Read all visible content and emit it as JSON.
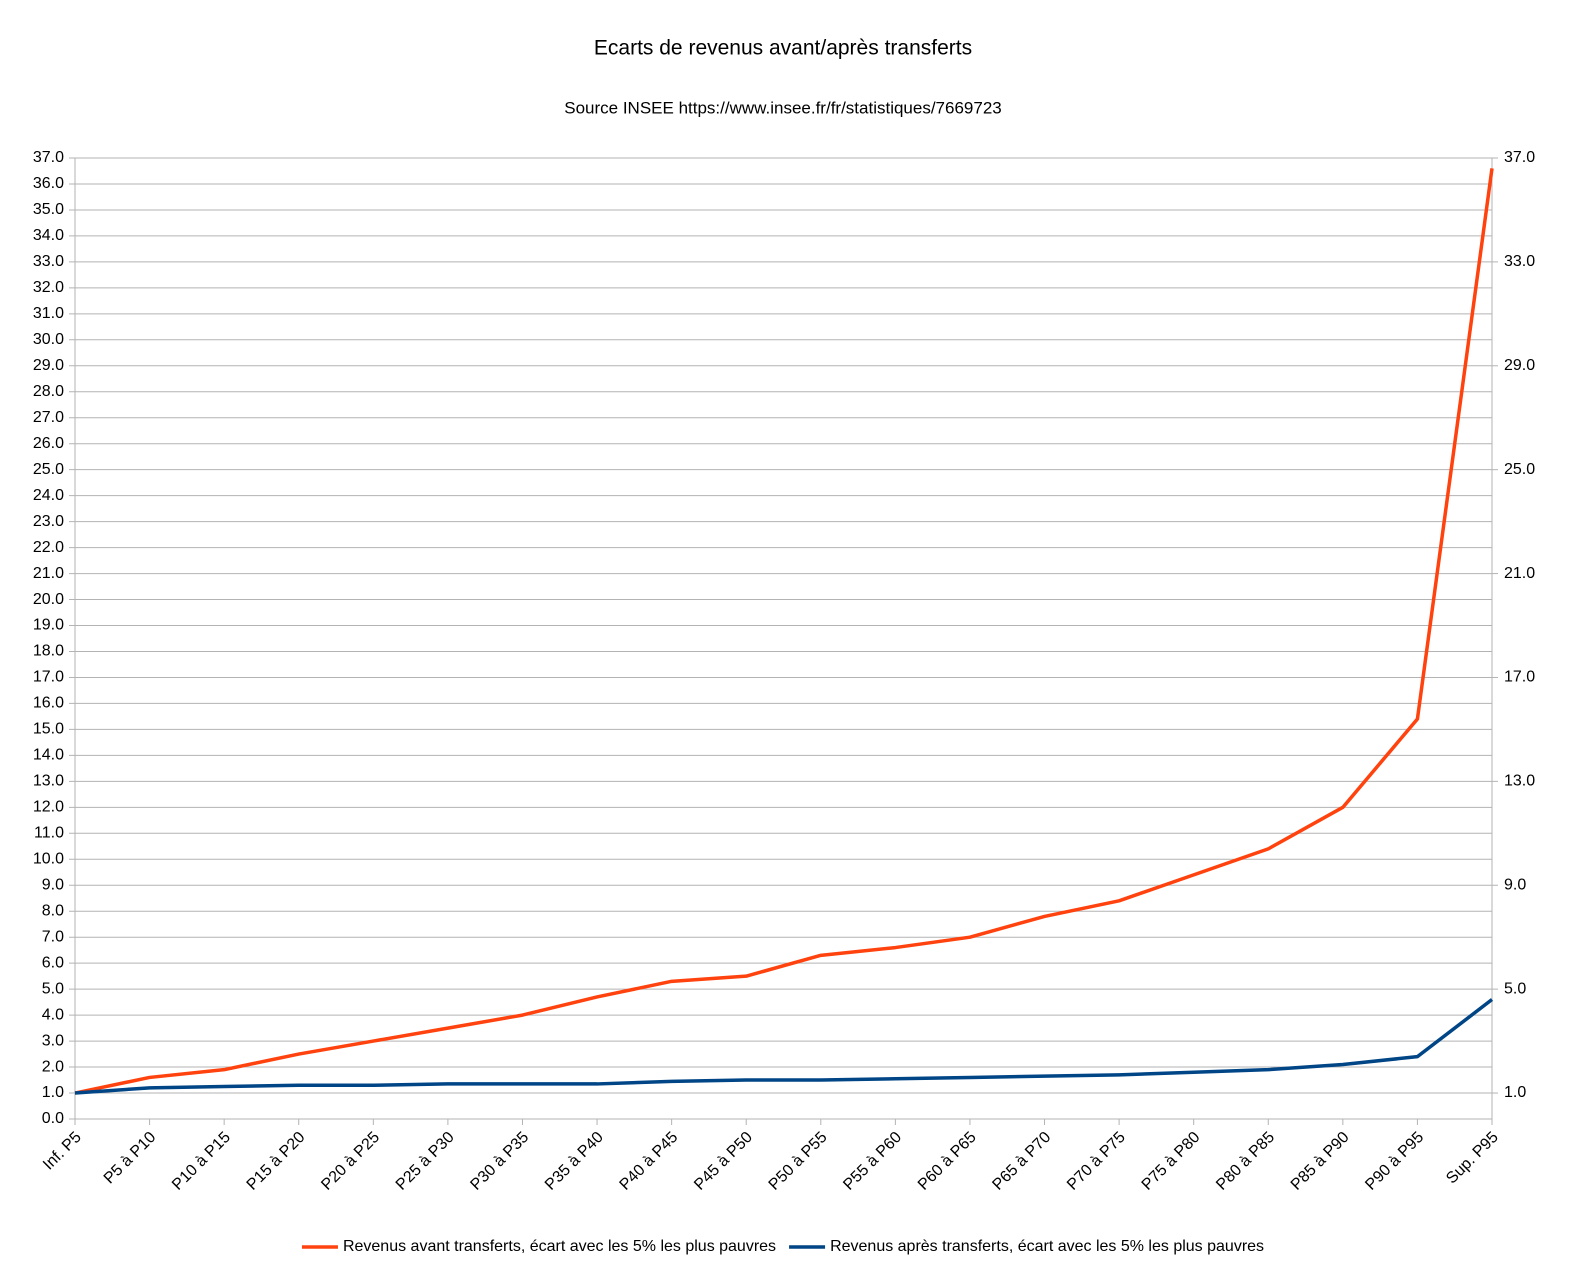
{
  "chart_data": {
    "type": "line",
    "title": "Ecarts de revenus avant/après transferts",
    "subtitle": "Source INSEE https://www.insee.fr/fr/statistiques/7669723",
    "categories": [
      "Inf. P5",
      "P5 à P10",
      "P10 à P15",
      "P15 à P20",
      "P20 à P25",
      "P25 à P30",
      "P30 à P35",
      "P35 à P40",
      "P40 à P45",
      "P45 à P50",
      "P50 à P55",
      "P55 à P60",
      "P60 à P65",
      "P65 à P70",
      "P70 à P75",
      "P75 à P80",
      "P80 à P85",
      "P85 à P90",
      "P90 à P95",
      "Sup. P95"
    ],
    "series": [
      {
        "name": "Revenus avant transferts, écart avec les 5% les plus pauvres",
        "color": "#ff420e",
        "values": [
          1.0,
          1.6,
          1.9,
          2.5,
          3.0,
          3.5,
          4.0,
          4.7,
          5.3,
          5.5,
          6.3,
          6.6,
          7.0,
          7.8,
          8.4,
          9.4,
          10.4,
          12.0,
          15.4,
          36.6
        ]
      },
      {
        "name": "Revenus après transferts, écart avec les 5% les plus pauvres",
        "color": "#004586",
        "values": [
          1.0,
          1.2,
          1.25,
          1.3,
          1.3,
          1.35,
          1.35,
          1.35,
          1.45,
          1.5,
          1.5,
          1.55,
          1.6,
          1.65,
          1.7,
          1.8,
          1.9,
          2.1,
          2.4,
          4.6
        ]
      }
    ],
    "ylim": [
      0,
      37
    ],
    "yticks": [
      {
        "value": 0,
        "label": "0.0"
      },
      {
        "value": 1,
        "label": "1.0"
      },
      {
        "value": 2,
        "label": "2.0"
      },
      {
        "value": 3,
        "label": "3.0"
      },
      {
        "value": 4,
        "label": "4.0"
      },
      {
        "value": 5,
        "label": "5.0"
      },
      {
        "value": 6,
        "label": "6.0"
      },
      {
        "value": 7,
        "label": "7.0"
      },
      {
        "value": 8,
        "label": "8.0"
      },
      {
        "value": 9,
        "label": "9.0"
      },
      {
        "value": 10,
        "label": "10.0"
      },
      {
        "value": 11,
        "label": "11.0"
      },
      {
        "value": 12,
        "label": "12.0"
      },
      {
        "value": 13,
        "label": "13.0"
      },
      {
        "value": 14,
        "label": "14.0"
      },
      {
        "value": 15,
        "label": "15.0"
      },
      {
        "value": 16,
        "label": "16.0"
      },
      {
        "value": 17,
        "label": "17.0"
      },
      {
        "value": 18,
        "label": "18.0"
      },
      {
        "value": 19,
        "label": "19.0"
      },
      {
        "value": 20,
        "label": "20.0"
      },
      {
        "value": 21,
        "label": "21.0"
      },
      {
        "value": 22,
        "label": "22.0"
      },
      {
        "value": 23,
        "label": "23.0"
      },
      {
        "value": 24,
        "label": "24.0"
      },
      {
        "value": 25,
        "label": "25.0"
      },
      {
        "value": 26,
        "label": "26.0"
      },
      {
        "value": 27,
        "label": "27.0"
      },
      {
        "value": 28,
        "label": "28.0"
      },
      {
        "value": 29,
        "label": "29.0"
      },
      {
        "value": 30,
        "label": "30.0"
      },
      {
        "value": 31,
        "label": "31.0"
      },
      {
        "value": 32,
        "label": "32.0"
      },
      {
        "value": 33,
        "label": "33.0"
      },
      {
        "value": 34,
        "label": "34.0"
      },
      {
        "value": 35,
        "label": "35.0"
      },
      {
        "value": 36,
        "label": "36.0"
      },
      {
        "value": 37,
        "label": "37.0"
      }
    ],
    "y2lim": [
      0,
      37
    ],
    "y2ticks": [
      {
        "value": 1,
        "label": "1.0"
      },
      {
        "value": 5,
        "label": "5.0"
      },
      {
        "value": 9,
        "label": "9.0"
      },
      {
        "value": 13,
        "label": "13.0"
      },
      {
        "value": 17,
        "label": "17.0"
      },
      {
        "value": 21,
        "label": "21.0"
      },
      {
        "value": 25,
        "label": "25.0"
      },
      {
        "value": 29,
        "label": "29.0"
      },
      {
        "value": 33,
        "label": "33.0"
      },
      {
        "value": 37,
        "label": "37.0"
      }
    ],
    "grid": true,
    "legend": "bottom"
  }
}
